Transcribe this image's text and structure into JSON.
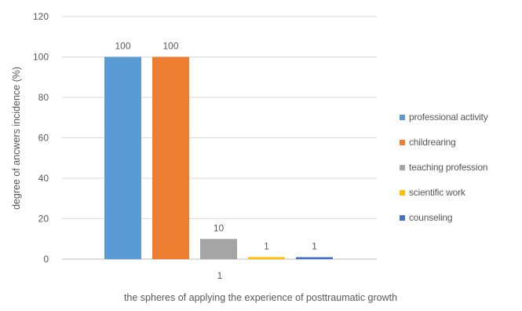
{
  "chart_data": {
    "type": "bar",
    "categories": [
      "1"
    ],
    "series": [
      {
        "name": "professional activity",
        "values": [
          100
        ],
        "color": "#5b9bd5"
      },
      {
        "name": "childrearing",
        "values": [
          100
        ],
        "color": "#ed7d31"
      },
      {
        "name": "teaching profession",
        "values": [
          10
        ],
        "color": "#a5a5a5"
      },
      {
        "name": "scientific work",
        "values": [
          1
        ],
        "color": "#ffc000"
      },
      {
        "name": "counseling",
        "values": [
          1
        ],
        "color": "#4472c4"
      }
    ],
    "data_labels": [
      "100",
      "100",
      "10",
      "1",
      "1"
    ],
    "title": "",
    "xlabel": "the spheres of applying the experience of posttraumatic growth",
    "ylabel": "degree of ancwers incidence (%)",
    "ylim": [
      0,
      120
    ],
    "yticks": [
      0,
      20,
      40,
      60,
      80,
      100,
      120
    ],
    "grid": true,
    "legend_position": "right"
  }
}
